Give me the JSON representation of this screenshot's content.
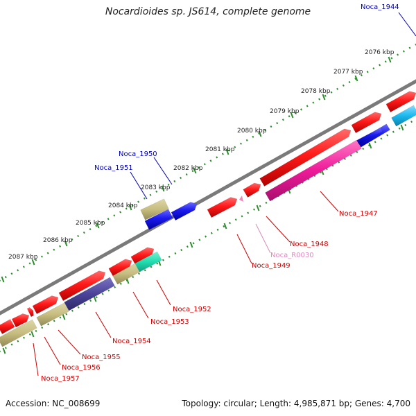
{
  "title": "Nocardioides sp. JS614, complete genome",
  "footer": {
    "accession": "Accession: NC_008699",
    "summary": "Topology: circular; Length: 4,985,871 bp; Genes: 4,700"
  },
  "colors": {
    "backbone": "#8a8a8a",
    "ruler_dots": "#2e8b2e",
    "red": "#ff1a1a",
    "blue": "#1a1aee",
    "khaki": "#c7bd80",
    "navy": "#4a4399",
    "teal": "#21ddb0",
    "magenta": "#ee1a99",
    "pink": "#ee88bb",
    "cyan": "#1ab8ee",
    "red_label": "#cc0000",
    "blue_label": "#0000bb",
    "pink_label": "#dd88bb"
  },
  "ruler_labels": [
    "2076 kbp",
    "2077 kbp",
    "2078 kbp",
    "2079 kbp",
    "2080 kbp",
    "2081 kbp",
    "2082 kbp",
    "2083 kbp",
    "2084 kbp",
    "2085 kbp",
    "2086 kbp",
    "2087 kbp"
  ],
  "gene_labels": [
    {
      "text": "Noca_1944",
      "color": "blue"
    },
    {
      "text": "Noca_1947",
      "color": "red"
    },
    {
      "text": "Noca_1948",
      "color": "red"
    },
    {
      "text": "Noca_R0030",
      "color": "pink"
    },
    {
      "text": "Noca_1949",
      "color": "red"
    },
    {
      "text": "Noca_1950",
      "color": "blue"
    },
    {
      "text": "Noca_1951",
      "color": "blue"
    },
    {
      "text": "Noca_1952",
      "color": "red"
    },
    {
      "text": "Noca_1953",
      "color": "red"
    },
    {
      "text": "Noca_1954",
      "color": "red"
    },
    {
      "text": "Noca_1955",
      "color": "red"
    },
    {
      "text": "Noca_1956",
      "color": "red"
    },
    {
      "text": "Noca_1957",
      "color": "red"
    }
  ]
}
